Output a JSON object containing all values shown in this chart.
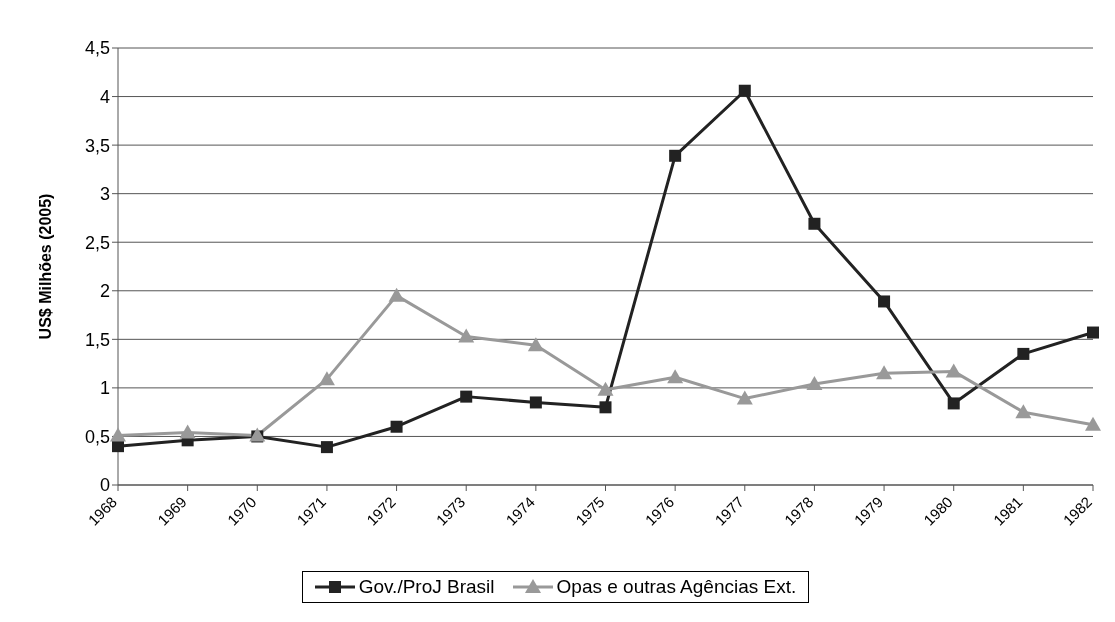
{
  "chart_data": {
    "type": "line",
    "ylabel": "US$ Milhões (2005)",
    "categories": [
      "1968",
      "1969",
      "1970",
      "1971",
      "1972",
      "1973",
      "1974",
      "1975",
      "1976",
      "1977",
      "1978",
      "1979",
      "1980",
      "1981",
      "1982"
    ],
    "series": [
      {
        "name": "Gov./ProJ Brasil",
        "color": "#222222",
        "marker": "square",
        "values": [
          0.4,
          0.46,
          0.5,
          0.39,
          0.6,
          0.91,
          0.85,
          0.8,
          3.39,
          4.06,
          2.69,
          1.89,
          0.84,
          1.35,
          1.57
        ]
      },
      {
        "name": "Opas e outras Agências Ext.",
        "color": "#999999",
        "marker": "triangle",
        "values": [
          0.51,
          0.54,
          0.51,
          1.09,
          1.95,
          1.53,
          1.44,
          0.98,
          1.11,
          0.89,
          1.04,
          1.15,
          1.17,
          0.75,
          0.62
        ]
      }
    ],
    "ylim": [
      0,
      4.5
    ],
    "yticks": [
      0,
      {
        "value": 0.5,
        "label": "0,5"
      },
      1,
      {
        "value": 1.5,
        "label": "1,5"
      },
      2,
      {
        "value": 2.5,
        "label": "2,5"
      },
      3,
      {
        "value": 3.5,
        "label": "3,5"
      },
      4,
      {
        "value": 4.5,
        "label": "4,5"
      }
    ],
    "grid": "y",
    "legend": "bottom",
    "line_style": "solid"
  }
}
